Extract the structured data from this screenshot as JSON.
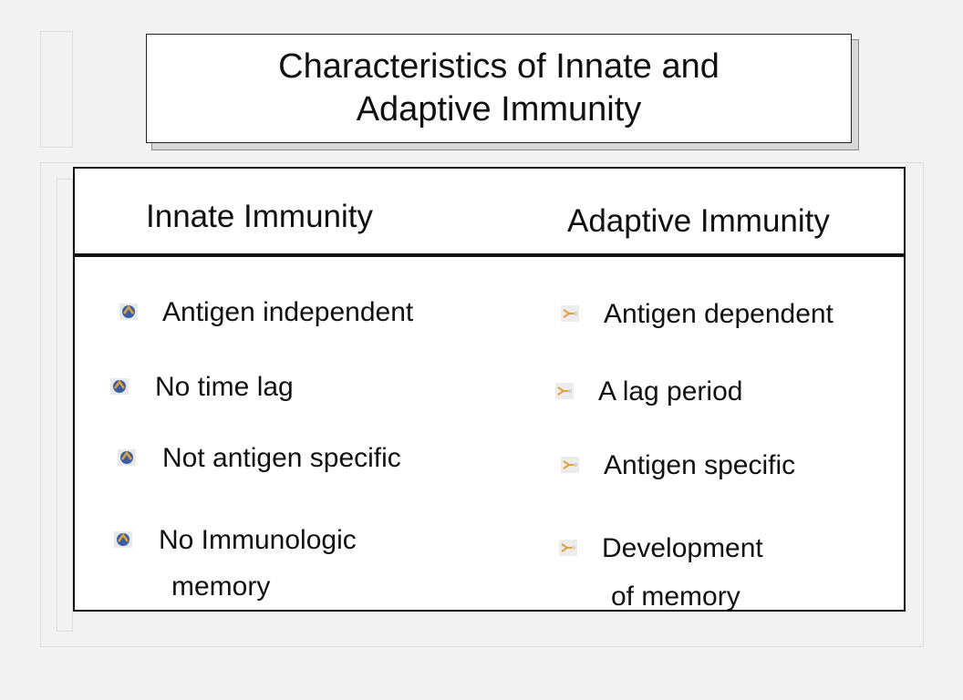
{
  "slide": {
    "title": "Characteristics of Innate and Adaptive Immunity",
    "innate": {
      "heading": "Innate Immunity",
      "items": [
        {
          "line1": "Antigen independent",
          "line2": ""
        },
        {
          "line1": "No time lag",
          "line2": ""
        },
        {
          "line1": "Not antigen specific",
          "line2": ""
        },
        {
          "line1": "No Immunologic",
          "line2": "memory"
        }
      ],
      "bullet_icon": "round-bullet-icon"
    },
    "adaptive": {
      "heading": "Adaptive Immunity",
      "items": [
        {
          "line1": "Antigen dependent",
          "line2": ""
        },
        {
          "line1": "A lag period",
          "line2": ""
        },
        {
          "line1": "Antigen specific",
          "line2": ""
        },
        {
          "line1": "Development",
          "line2": "of memory"
        }
      ],
      "bullet_icon": "arrow-bullet-icon"
    }
  },
  "colors": {
    "background": "#f2f2f2",
    "text": "#111111",
    "bullet_blue": "#3a5fa0",
    "bullet_orange": "#e0a040"
  }
}
